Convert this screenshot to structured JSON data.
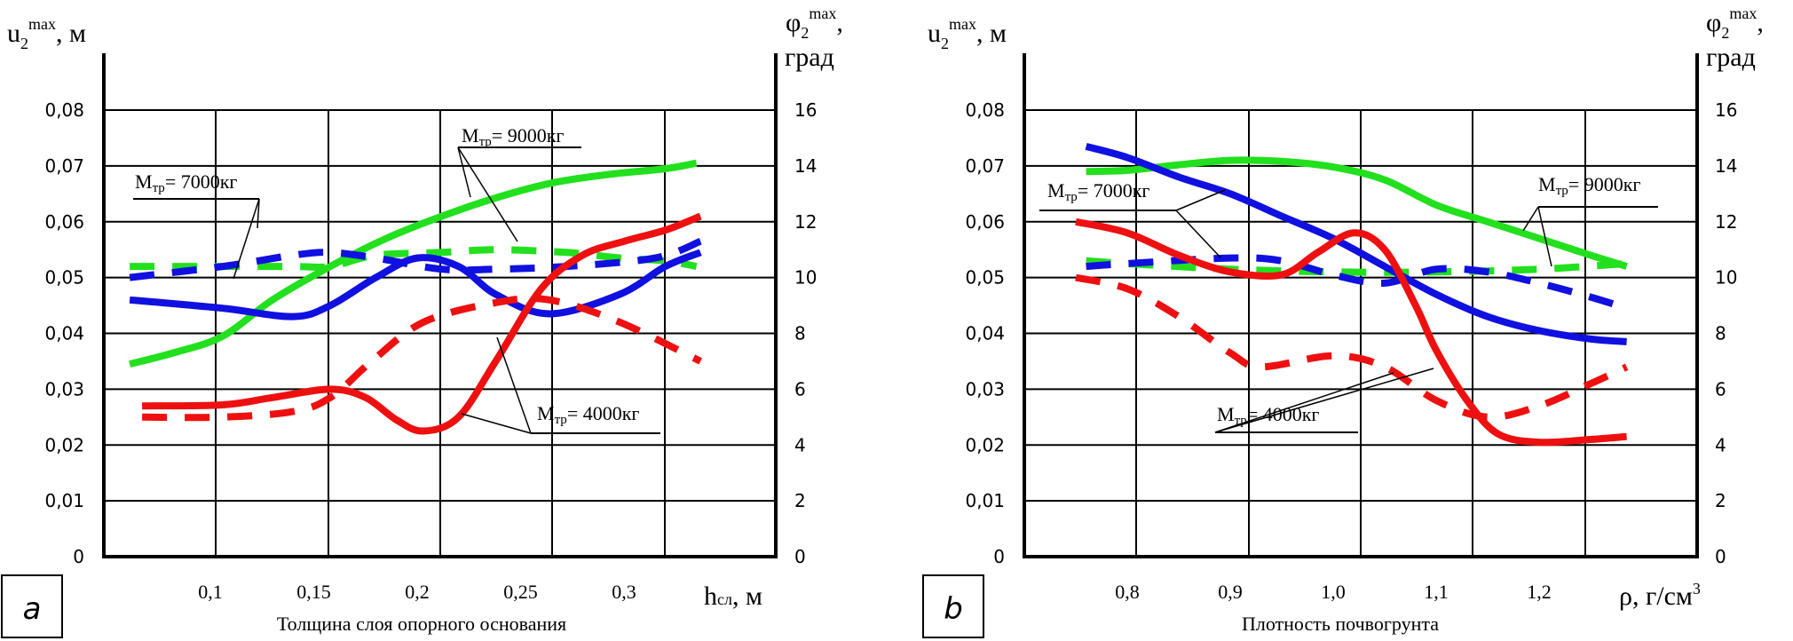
{
  "figure": {
    "panels": [
      "a",
      "b"
    ]
  },
  "chart_data": [
    {
      "type": "line",
      "panel_label": "a",
      "title": "",
      "xlabel": "Толщина слоя опорного основания",
      "xunit_label": "h",
      "xunit_sub": "сл",
      "xunit_suffix": ", м",
      "ylabel_left": "u",
      "ylabel_left_sub": "2",
      "ylabel_left_sup": "max",
      "ylabel_left_suffix": ", м",
      "ylabel_right": "φ",
      "ylabel_right_sub": "2",
      "ylabel_right_sup": "max",
      "ylabel_right_suffix": ",",
      "ylabel_right_unit": "град",
      "xticks": [
        "0,1",
        "0,15",
        "0,2",
        "0,25",
        "0,3"
      ],
      "xtick_values": [
        0.1,
        0.15,
        0.2,
        0.25,
        0.3
      ],
      "xlim": [
        0.048,
        0.377
      ],
      "yticks_left": [
        "0",
        "0,01",
        "0,02",
        "0,03",
        "0,04",
        "0,05",
        "0,06",
        "0,07",
        "0,08"
      ],
      "yticks_right": [
        "0",
        "2",
        "4",
        "6",
        "8",
        "10",
        "12",
        "14",
        "16"
      ],
      "ylim_left": [
        0,
        0.08
      ],
      "ylim_right": [
        0,
        16
      ],
      "grid": true,
      "series": [
        {
          "name": "u2max, Mтр=9000кг",
          "color": "#22e01e",
          "dashed": false,
          "axis": "left",
          "x": [
            0.061,
            0.082,
            0.106,
            0.13,
            0.158,
            0.185,
            0.212,
            0.24,
            0.266,
            0.293,
            0.32,
            0.335
          ],
          "y": [
            0.0345,
            0.0365,
            0.0395,
            0.046,
            0.052,
            0.057,
            0.061,
            0.0645,
            0.067,
            0.0685,
            0.0695,
            0.0705
          ]
        },
        {
          "name": "φ2max, Mтр=9000кг",
          "color": "#22e01e",
          "dashed": true,
          "axis": "left",
          "x": [
            0.061,
            0.106,
            0.14,
            0.158,
            0.18,
            0.212,
            0.238,
            0.272,
            0.298,
            0.32,
            0.335
          ],
          "y": [
            0.052,
            0.052,
            0.052,
            0.052,
            0.054,
            0.0545,
            0.055,
            0.0545,
            0.0535,
            0.053,
            0.052
          ]
        },
        {
          "name": "u2max, Mтр=7000кг",
          "color": "#1010e0",
          "dashed": false,
          "axis": "left",
          "x": [
            0.061,
            0.106,
            0.14,
            0.158,
            0.18,
            0.2,
            0.22,
            0.238,
            0.264,
            0.298,
            0.32,
            0.337
          ],
          "y": [
            0.046,
            0.0445,
            0.043,
            0.045,
            0.05,
            0.0535,
            0.052,
            0.047,
            0.0435,
            0.047,
            0.052,
            0.0545
          ]
        },
        {
          "name": "φ2max, Mтр=7000кг",
          "color": "#1010e0",
          "dashed": true,
          "axis": "left",
          "x": [
            0.061,
            0.106,
            0.14,
            0.158,
            0.18,
            0.212,
            0.238,
            0.272,
            0.315,
            0.337
          ],
          "y": [
            0.05,
            0.052,
            0.054,
            0.0545,
            0.0535,
            0.0515,
            0.0515,
            0.052,
            0.0535,
            0.0565
          ]
        },
        {
          "name": "u2max, Mтр=4000кг",
          "color": "#ee1010",
          "dashed": false,
          "axis": "left",
          "x": [
            0.067,
            0.106,
            0.13,
            0.158,
            0.175,
            0.19,
            0.203,
            0.22,
            0.238,
            0.26,
            0.28,
            0.3,
            0.32,
            0.337
          ],
          "y": [
            0.027,
            0.0272,
            0.0285,
            0.03,
            0.0285,
            0.0245,
            0.0225,
            0.025,
            0.035,
            0.048,
            0.054,
            0.0565,
            0.0585,
            0.061
          ]
        },
        {
          "name": "φ2max, Mтр=4000кг",
          "color": "#ee1010",
          "dashed": true,
          "axis": "left",
          "x": [
            0.067,
            0.106,
            0.14,
            0.158,
            0.178,
            0.203,
            0.238,
            0.264,
            0.298,
            0.337
          ],
          "y": [
            0.025,
            0.025,
            0.026,
            0.0285,
            0.035,
            0.042,
            0.0455,
            0.046,
            0.042,
            0.035
          ]
        }
      ],
      "annotations": [
        {
          "text_main": "M",
          "text_sub": "тр",
          "text_rest": "= 7000кг"
        },
        {
          "text_main": "M",
          "text_sub": "тр",
          "text_rest": "= 9000кг"
        },
        {
          "text_main": "M",
          "text_sub": "тр",
          "text_rest": "= 4000кг"
        }
      ]
    },
    {
      "type": "line",
      "panel_label": "b",
      "title": "",
      "xlabel": "Плотность почвогрунта",
      "xunit_label": "ρ, г/см",
      "xunit_sup": "3",
      "ylabel_left": "u",
      "ylabel_left_sub": "2",
      "ylabel_left_sup": "max",
      "ylabel_left_suffix": ", м",
      "ylabel_right": "φ",
      "ylabel_right_sub": "2",
      "ylabel_right_sup": "max",
      "ylabel_right_suffix": ",",
      "ylabel_right_unit": "град",
      "xticks": [
        "0,8",
        "0,9",
        "1,0",
        "1,1",
        "1,2"
      ],
      "xtick_values": [
        0.8,
        0.9,
        1.0,
        1.1,
        1.2
      ],
      "xlim": [
        0.7,
        1.35
      ],
      "yticks_left": [
        "0",
        "0,01",
        "0,02",
        "0,03",
        "0,04",
        "0,05",
        "0,06",
        "0,07",
        "0,08"
      ],
      "yticks_right": [
        "0",
        "2",
        "4",
        "6",
        "8",
        "10",
        "12",
        "14",
        "16"
      ],
      "ylim_left": [
        0,
        0.08
      ],
      "ylim_right": [
        0,
        16
      ],
      "grid": true,
      "series": [
        {
          "name": "u2max, Mтр=9000кг",
          "color": "#22e01e",
          "dashed": false,
          "axis": "left",
          "x": [
            0.76,
            0.8,
            0.85,
            0.9,
            0.95,
            1.0,
            1.05,
            1.1,
            1.15,
            1.2,
            1.25,
            1.285
          ],
          "y": [
            0.069,
            0.0692,
            0.0702,
            0.071,
            0.0708,
            0.0698,
            0.0675,
            0.063,
            0.06,
            0.057,
            0.054,
            0.052
          ]
        },
        {
          "name": "φ2max, Mтр=9000кг",
          "color": "#22e01e",
          "dashed": true,
          "axis": "left",
          "x": [
            0.76,
            0.8,
            0.9,
            1.0,
            1.1,
            1.2,
            1.285
          ],
          "y": [
            0.053,
            0.0525,
            0.0515,
            0.051,
            0.051,
            0.0515,
            0.0525
          ]
        },
        {
          "name": "u2max, Mтр=7000кг",
          "color": "#1010e0",
          "dashed": false,
          "axis": "left",
          "x": [
            0.76,
            0.8,
            0.85,
            0.9,
            0.95,
            1.0,
            1.05,
            1.1,
            1.15,
            1.2,
            1.25,
            1.285
          ],
          "y": [
            0.0735,
            0.0715,
            0.068,
            0.065,
            0.061,
            0.057,
            0.052,
            0.047,
            0.043,
            0.0405,
            0.039,
            0.0385
          ]
        },
        {
          "name": "φ2max, Mтр=7000кг",
          "color": "#1010e0",
          "dashed": true,
          "axis": "left",
          "x": [
            0.76,
            0.8,
            0.9,
            0.95,
            1.0,
            1.05,
            1.1,
            1.15,
            1.2,
            1.25,
            1.285
          ],
          "y": [
            0.052,
            0.0525,
            0.0535,
            0.053,
            0.0505,
            0.049,
            0.0515,
            0.051,
            0.049,
            0.0465,
            0.0445
          ]
        },
        {
          "name": "u2max, Mтр=4000кг",
          "color": "#ee1010",
          "dashed": false,
          "axis": "left",
          "x": [
            0.75,
            0.8,
            0.85,
            0.9,
            0.95,
            0.985,
            1.02,
            1.05,
            1.08,
            1.1,
            1.13,
            1.16,
            1.2,
            1.25,
            1.285
          ],
          "y": [
            0.06,
            0.058,
            0.054,
            0.051,
            0.0505,
            0.0545,
            0.058,
            0.055,
            0.045,
            0.037,
            0.028,
            0.022,
            0.0205,
            0.021,
            0.0215
          ]
        },
        {
          "name": "φ2max, Mтр=4000кг",
          "color": "#ee1010",
          "dashed": true,
          "axis": "left",
          "x": [
            0.75,
            0.8,
            0.85,
            0.9,
            0.93,
            1.0,
            1.05,
            1.1,
            1.15,
            1.2,
            1.25,
            1.285
          ],
          "y": [
            0.05,
            0.048,
            0.043,
            0.0365,
            0.034,
            0.036,
            0.034,
            0.028,
            0.025,
            0.027,
            0.031,
            0.034
          ]
        }
      ],
      "annotations": [
        {
          "text_main": "M",
          "text_sub": "тр",
          "text_rest": "= 7000кг"
        },
        {
          "text_main": "M",
          "text_sub": "тр",
          "text_rest": "= 9000кг"
        },
        {
          "text_main": "M",
          "text_sub": "тр",
          "text_rest": "= 4000кг"
        }
      ]
    }
  ]
}
